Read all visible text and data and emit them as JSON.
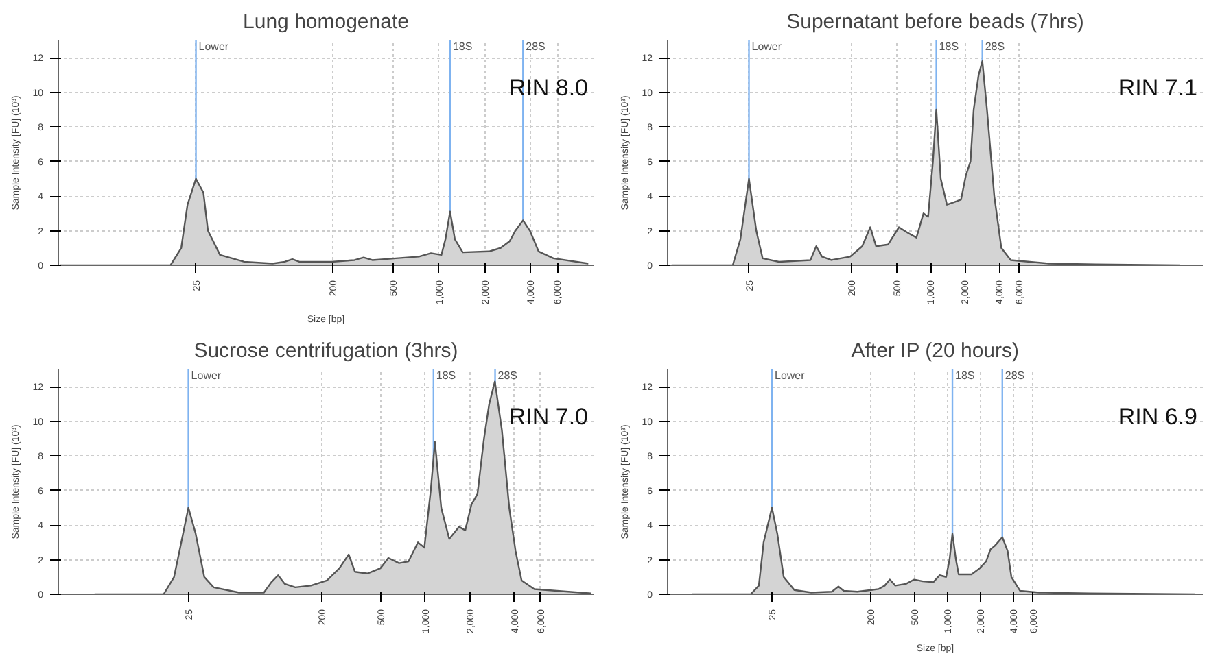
{
  "chart_data": [
    {
      "type": "area",
      "title": "Lung homogenate",
      "xlabel": "Size [bp]",
      "ylabel": "Sample Intensity [FU] (10³)",
      "color": "#d4d4d4",
      "grid": true,
      "log": "x",
      "annotations": [
        "RIN 8.0"
      ],
      "xlim": [
        3.1,
        10400
      ],
      "ylim": [
        0,
        13
      ],
      "yticks": [
        0,
        2,
        4,
        6,
        8,
        10,
        12
      ],
      "xticks": [
        25,
        200,
        500,
        {
          "value": 1000,
          "label": "1,000"
        },
        {
          "value": 2000,
          "label": "2,000"
        },
        {
          "value": 4000,
          "label": "4,000"
        },
        {
          "value": 6000,
          "label": "6,000"
        }
      ],
      "ref_lines": [
        {
          "axis": "x",
          "value": 25,
          "label": "Lower",
          "color": "#7fb3f0"
        },
        {
          "axis": "x",
          "value": 1180,
          "label": "18S",
          "color": "#7fb3f0"
        },
        {
          "axis": "x",
          "value": 3570,
          "label": "28S",
          "color": "#7fb3f0"
        }
      ],
      "x": [
        3.2,
        17,
        20,
        22,
        25,
        28,
        30,
        36,
        52,
        80,
        96,
        108,
        120,
        195,
        277,
        318,
        363,
        518,
        736,
        883,
        1035,
        1100,
        1180,
        1270,
        1430,
        2130,
        2540,
        2920,
        3180,
        3570,
        3960,
        4520,
        5660,
        9600
      ],
      "values": [
        0,
        0,
        1,
        3.5,
        5.0,
        4.2,
        2,
        0.6,
        0.2,
        0.1,
        0.2,
        0.35,
        0.2,
        0.2,
        0.3,
        0.45,
        0.3,
        0.4,
        0.5,
        0.7,
        0.6,
        1.5,
        3.1,
        1.5,
        0.75,
        0.8,
        1,
        1.4,
        2,
        2.6,
        2,
        0.8,
        0.4,
        0.1
      ]
    },
    {
      "type": "area",
      "title": "Supernatant before beads (7hrs)",
      "ylabel": "Sample Intensity [FU] (10³)",
      "color": "#d4d4d4",
      "grid": true,
      "log": "x",
      "annotations": [
        "RIN 7.1"
      ],
      "xlim": [
        4.8,
        250000
      ],
      "ylim": [
        0,
        13
      ],
      "yticks": [
        0,
        2,
        4,
        6,
        8,
        10,
        12
      ],
      "xticks": [
        25,
        200,
        500,
        {
          "value": 1000,
          "label": "1,000"
        },
        {
          "value": 2000,
          "label": "2,000"
        },
        {
          "value": 4000,
          "label": "4,000"
        },
        {
          "value": 6000,
          "label": "6,000"
        }
      ],
      "ref_lines": [
        {
          "axis": "x",
          "value": 25,
          "label": "Lower",
          "color": "#7fb3f0"
        },
        {
          "axis": "x",
          "value": 1120,
          "label": "18S",
          "color": "#7fb3f0"
        },
        {
          "axis": "x",
          "value": 2850,
          "label": "28S",
          "color": "#7fb3f0"
        }
      ],
      "x": [
        5.2,
        18,
        21,
        25,
        29,
        33,
        46,
        87,
        98,
        110,
        133,
        195,
        249,
        293,
        330,
        421,
        524,
        618,
        748,
        863,
        948,
        1045,
        1120,
        1225,
        1390,
        1690,
        1850,
        2040,
        2240,
        2390,
        2640,
        2850,
        3130,
        3630,
        4190,
        5070,
        10900,
        28400,
        158000
      ],
      "values": [
        0,
        0,
        1.5,
        5.0,
        2,
        0.4,
        0.2,
        0.3,
        1.1,
        0.5,
        0.3,
        0.5,
        1.1,
        2.2,
        1.1,
        1.2,
        2.2,
        1.9,
        1.6,
        3.0,
        2.8,
        6,
        9.0,
        5,
        3.5,
        3.7,
        3.8,
        5.2,
        6,
        9,
        11,
        11.8,
        9,
        4,
        1,
        0.3,
        0.1,
        0.05,
        0
      ]
    },
    {
      "type": "area",
      "title": "Sucrose centrifugation (3hrs)",
      "ylabel": "Sample Intensity [FU] (10³)",
      "color": "#d4d4d4",
      "grid": true,
      "log": "x",
      "annotations": [
        "RIN 7.0"
      ],
      "xlim": [
        3.3,
        13700
      ],
      "ylim": [
        0,
        13
      ],
      "yticks": [
        0,
        2,
        4,
        6,
        8,
        10,
        12
      ],
      "xticks": [
        25,
        200,
        500,
        {
          "value": 1000,
          "label": "1,000"
        },
        {
          "value": 2000,
          "label": "2,000"
        },
        {
          "value": 4000,
          "label": "4,000"
        },
        {
          "value": 6000,
          "label": "6,000"
        }
      ],
      "ref_lines": [
        {
          "axis": "x",
          "value": 25,
          "label": "Lower",
          "color": "#7fb3f0"
        },
        {
          "axis": "x",
          "value": 1135,
          "label": "18S",
          "color": "#7fb3f0"
        },
        {
          "axis": "x",
          "value": 2960,
          "label": "28S",
          "color": "#7fb3f0"
        }
      ],
      "x": [
        5.8,
        17,
        20,
        23,
        25,
        28,
        32,
        37,
        55,
        81,
        91,
        101,
        112,
        132,
        168,
        216,
        262,
        303,
        334,
        407,
        496,
        562,
        664,
        769,
        891,
        984,
        1087,
        1160,
        1280,
        1450,
        1690,
        1860,
        2050,
        2250,
        2490,
        2700,
        2950,
        3290,
        3690,
        4070,
        4470,
        5450,
        13200
      ],
      "values": [
        0,
        0,
        1,
        3.5,
        5.0,
        3.5,
        1,
        0.4,
        0.1,
        0.1,
        0.7,
        1.1,
        0.6,
        0.4,
        0.5,
        0.8,
        1.5,
        2.3,
        1.3,
        1.2,
        1.5,
        2.1,
        1.8,
        1.9,
        3.0,
        2.7,
        6,
        8.8,
        5,
        3.2,
        3.9,
        3.7,
        5.2,
        5.8,
        9,
        11,
        12.3,
        9.5,
        5,
        2.5,
        0.8,
        0.3,
        0.05
      ]
    },
    {
      "type": "area",
      "title": "After IP (20 hours)",
      "xlabel": "Size [bp]",
      "ylabel": "Sample Intensity [FU] (10³)",
      "color": "#d4d4d4",
      "grid": true,
      "log": "x",
      "annotations": [
        "RIN 6.9"
      ],
      "xlim": [
        2.8,
        212000
      ],
      "ylim": [
        0,
        13
      ],
      "yticks": [
        0,
        2,
        4,
        6,
        8,
        10,
        12
      ],
      "xticks": [
        25,
        200,
        500,
        {
          "value": 1000,
          "label": "1,000"
        },
        {
          "value": 2000,
          "label": "2,000"
        },
        {
          "value": 4000,
          "label": "4,000"
        },
        {
          "value": 6000,
          "label": "6,000"
        }
      ],
      "ref_lines": [
        {
          "axis": "x",
          "value": 25,
          "label": "Lower",
          "color": "#7fb3f0"
        },
        {
          "axis": "x",
          "value": 1105,
          "label": "18S",
          "color": "#7fb3f0"
        },
        {
          "axis": "x",
          "value": 3150,
          "label": "28S",
          "color": "#7fb3f0"
        }
      ],
      "x": [
        4.7,
        16,
        19,
        21,
        25,
        28,
        32,
        40,
        57,
        88,
        101,
        113,
        150,
        234,
        267,
        297,
        333,
        416,
        496,
        594,
        740,
        845,
        968,
        1040,
        1105,
        1190,
        1260,
        1650,
        1960,
        2240,
        2460,
        2690,
        3150,
        3520,
        3810,
        4570,
        6820,
        19800,
        181000
      ],
      "values": [
        0,
        0,
        0.5,
        3,
        5.0,
        3.5,
        1,
        0.25,
        0.1,
        0.15,
        0.45,
        0.2,
        0.15,
        0.3,
        0.5,
        0.85,
        0.5,
        0.6,
        0.85,
        0.75,
        0.7,
        1.1,
        1.0,
        2,
        3.5,
        2,
        1.15,
        1.15,
        1.5,
        1.9,
        2.6,
        2.8,
        3.3,
        2.5,
        1,
        0.2,
        0.1,
        0.05,
        0
      ]
    }
  ]
}
